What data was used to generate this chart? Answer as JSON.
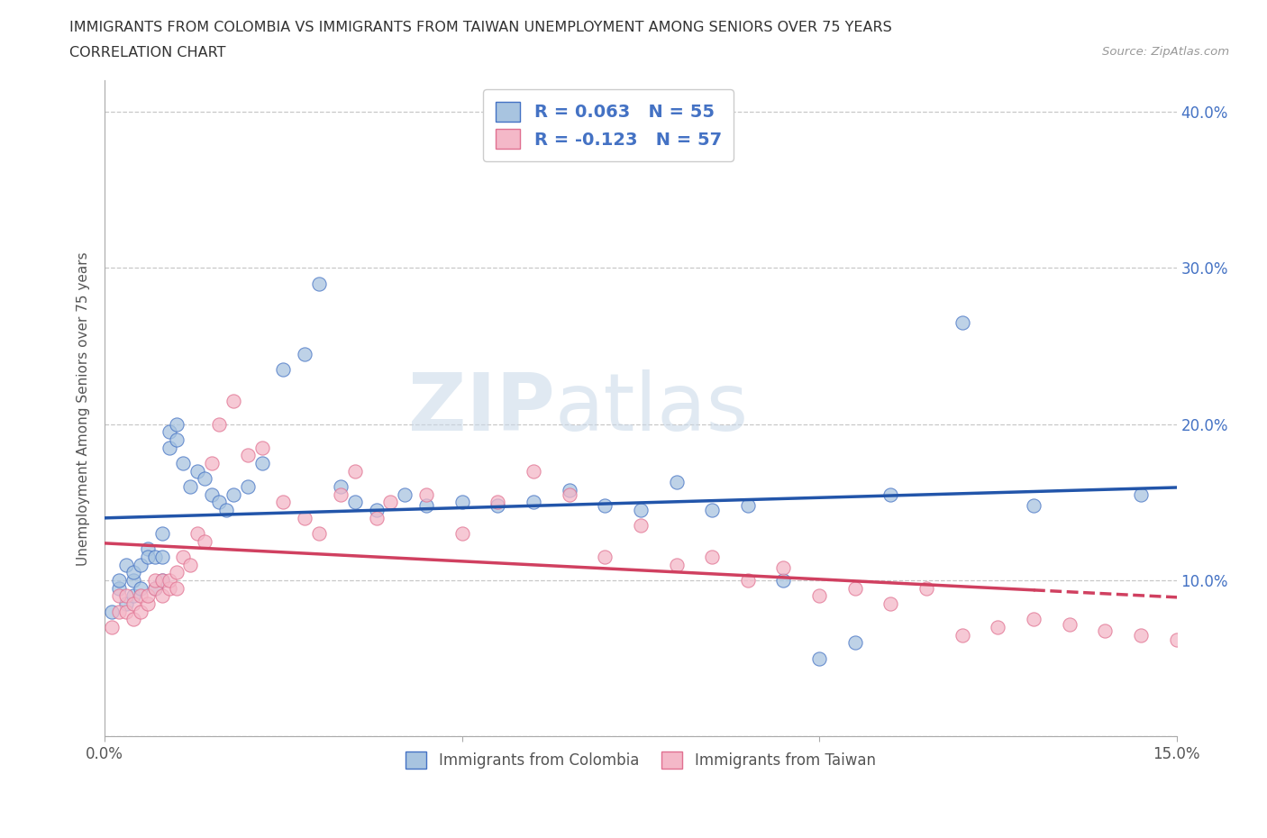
{
  "title_line1": "IMMIGRANTS FROM COLOMBIA VS IMMIGRANTS FROM TAIWAN UNEMPLOYMENT AMONG SENIORS OVER 75 YEARS",
  "title_line2": "CORRELATION CHART",
  "source": "Source: ZipAtlas.com",
  "ylabel": "Unemployment Among Seniors over 75 years",
  "xlim": [
    0.0,
    0.15
  ],
  "ylim": [
    0.0,
    0.42
  ],
  "y_ticks": [
    0.0,
    0.1,
    0.2,
    0.3,
    0.4
  ],
  "y_tick_labels": [
    "",
    "10.0%",
    "20.0%",
    "30.0%",
    "40.0%"
  ],
  "x_ticks": [
    0.0,
    0.05,
    0.1,
    0.15
  ],
  "x_tick_labels": [
    "0.0%",
    "",
    "",
    "15.0%"
  ],
  "colombia_color": "#a8c4e0",
  "colombia_edge_color": "#4472c4",
  "taiwan_color": "#f4b8c8",
  "taiwan_edge_color": "#e07090",
  "colombia_line_color": "#2255aa",
  "taiwan_line_color": "#d04060",
  "watermark_zip": "ZIP",
  "watermark_atlas": "atlas",
  "background_color": "#ffffff",
  "grid_color": "#c8c8c8",
  "colombia_scatter_x": [
    0.001,
    0.002,
    0.002,
    0.003,
    0.003,
    0.004,
    0.004,
    0.004,
    0.005,
    0.005,
    0.006,
    0.006,
    0.007,
    0.007,
    0.008,
    0.008,
    0.008,
    0.009,
    0.009,
    0.01,
    0.01,
    0.011,
    0.012,
    0.013,
    0.014,
    0.015,
    0.016,
    0.017,
    0.018,
    0.02,
    0.022,
    0.025,
    0.028,
    0.03,
    0.033,
    0.035,
    0.038,
    0.042,
    0.045,
    0.05,
    0.055,
    0.06,
    0.065,
    0.07,
    0.075,
    0.08,
    0.085,
    0.09,
    0.095,
    0.1,
    0.105,
    0.11,
    0.12,
    0.13,
    0.145
  ],
  "colombia_scatter_y": [
    0.08,
    0.095,
    0.1,
    0.085,
    0.11,
    0.09,
    0.1,
    0.105,
    0.095,
    0.11,
    0.12,
    0.115,
    0.095,
    0.115,
    0.1,
    0.115,
    0.13,
    0.195,
    0.185,
    0.19,
    0.2,
    0.175,
    0.16,
    0.17,
    0.165,
    0.155,
    0.15,
    0.145,
    0.155,
    0.16,
    0.175,
    0.235,
    0.245,
    0.29,
    0.16,
    0.15,
    0.145,
    0.155,
    0.148,
    0.15,
    0.148,
    0.15,
    0.158,
    0.148,
    0.145,
    0.163,
    0.145,
    0.148,
    0.1,
    0.05,
    0.06,
    0.155,
    0.265,
    0.148,
    0.155
  ],
  "taiwan_scatter_x": [
    0.001,
    0.002,
    0.002,
    0.003,
    0.003,
    0.004,
    0.004,
    0.005,
    0.005,
    0.006,
    0.006,
    0.007,
    0.007,
    0.008,
    0.008,
    0.009,
    0.009,
    0.01,
    0.01,
    0.011,
    0.012,
    0.013,
    0.014,
    0.015,
    0.016,
    0.018,
    0.02,
    0.022,
    0.025,
    0.028,
    0.03,
    0.033,
    0.035,
    0.038,
    0.04,
    0.045,
    0.05,
    0.055,
    0.06,
    0.065,
    0.07,
    0.075,
    0.08,
    0.085,
    0.09,
    0.095,
    0.1,
    0.105,
    0.11,
    0.115,
    0.12,
    0.125,
    0.13,
    0.135,
    0.14,
    0.145,
    0.15
  ],
  "taiwan_scatter_y": [
    0.07,
    0.08,
    0.09,
    0.08,
    0.09,
    0.085,
    0.075,
    0.09,
    0.08,
    0.085,
    0.09,
    0.095,
    0.1,
    0.09,
    0.1,
    0.095,
    0.1,
    0.095,
    0.105,
    0.115,
    0.11,
    0.13,
    0.125,
    0.175,
    0.2,
    0.215,
    0.18,
    0.185,
    0.15,
    0.14,
    0.13,
    0.155,
    0.17,
    0.14,
    0.15,
    0.155,
    0.13,
    0.15,
    0.17,
    0.155,
    0.115,
    0.135,
    0.11,
    0.115,
    0.1,
    0.108,
    0.09,
    0.095,
    0.085,
    0.095,
    0.065,
    0.07,
    0.075,
    0.072,
    0.068,
    0.065,
    0.062
  ]
}
